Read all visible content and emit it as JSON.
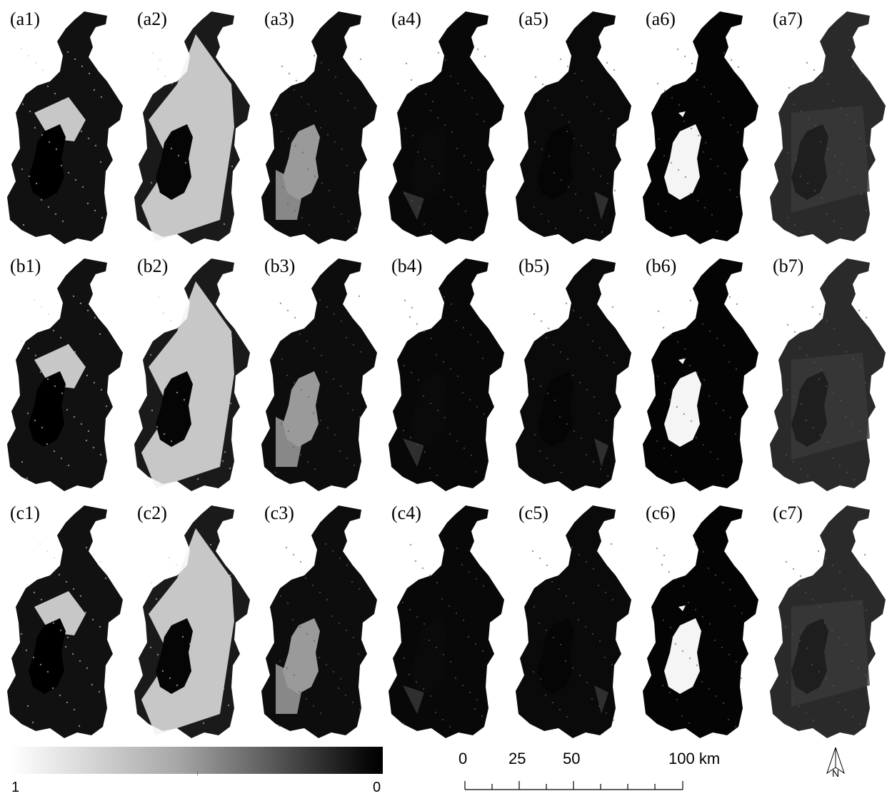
{
  "panels": [
    {
      "label": "(a1)",
      "row": 0,
      "col": 0,
      "ramp": "(i0)"
    },
    {
      "label": "(a2)",
      "row": 0,
      "col": 1,
      "ramp": "(i1)"
    },
    {
      "label": "(a3)",
      "row": 0,
      "col": 2,
      "ramp": "(i2)"
    },
    {
      "label": "(a4)",
      "row": 0,
      "col": 3,
      "ramp": "(i3)"
    },
    {
      "label": "(a5)",
      "row": 0,
      "col": 4,
      "ramp": "(i4)"
    },
    {
      "label": "(a6)",
      "row": 0,
      "col": 5,
      "ramp": "(i5)"
    },
    {
      "label": "(a7)",
      "row": 0,
      "col": 6,
      "ramp": "(i6)"
    },
    {
      "label": "(b1)",
      "row": 1,
      "col": 0,
      "ramp": "(i0)"
    },
    {
      "label": "(b2)",
      "row": 1,
      "col": 1,
      "ramp": "(i1)"
    },
    {
      "label": "(b3)",
      "row": 1,
      "col": 2,
      "ramp": "(i2)"
    },
    {
      "label": "(b4)",
      "row": 1,
      "col": 3,
      "ramp": "(i3)"
    },
    {
      "label": "(b5)",
      "row": 1,
      "col": 4,
      "ramp": "(i4)"
    },
    {
      "label": "(b6)",
      "row": 1,
      "col": 5,
      "ramp": "(i5)"
    },
    {
      "label": "(b7)",
      "row": 1,
      "col": 6,
      "ramp": "(i6)"
    },
    {
      "label": "(c1)",
      "row": 2,
      "col": 0,
      "ramp": "(i0)"
    },
    {
      "label": "(c2)",
      "row": 2,
      "col": 1,
      "ramp": "(i1)"
    },
    {
      "label": "(c3)",
      "row": 2,
      "col": 2,
      "ramp": "(i2)"
    },
    {
      "label": "(c4)",
      "row": 2,
      "col": 3,
      "ramp": "(i3)"
    },
    {
      "label": "(c5)",
      "row": 2,
      "col": 4,
      "ramp": "(i4)"
    },
    {
      "label": "(c6)",
      "row": 2,
      "col": 5,
      "ramp": "(i5)"
    },
    {
      "label": "(c7)",
      "row": 2,
      "col": 6,
      "ramp": "(i6)"
    }
  ],
  "legend": {
    "min_label": "1",
    "max_label": "0",
    "colors": [
      "#ffffff",
      "#000000"
    ]
  },
  "scale_bar": {
    "labels": [
      "0",
      "25",
      "50",
      "100 km"
    ]
  },
  "north_arrow": {
    "label": "N",
    "icon": "north-arrow-icon"
  }
}
